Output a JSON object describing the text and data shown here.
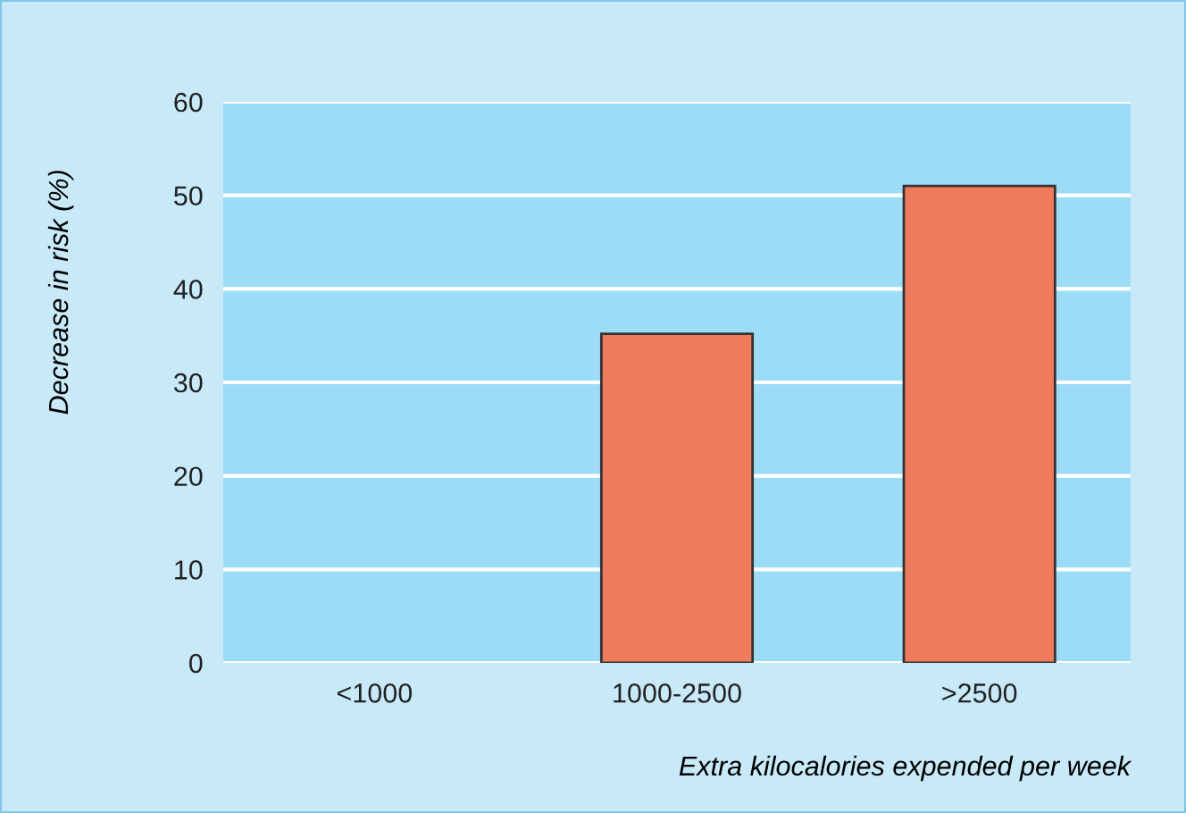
{
  "chart_data": {
    "type": "bar",
    "xlabel": "Extra kilocalories expended per week",
    "ylabel": "Decrease in risk (%)",
    "categories": [
      "<1000",
      "1000-2500",
      ">2500"
    ],
    "values": [
      0,
      35.2,
      51
    ],
    "color": "#f07b5c",
    "ylim": [
      0,
      60
    ],
    "yticks": [
      0,
      10,
      20,
      30,
      40,
      50,
      60
    ],
    "grid": "y",
    "legend": false
  }
}
